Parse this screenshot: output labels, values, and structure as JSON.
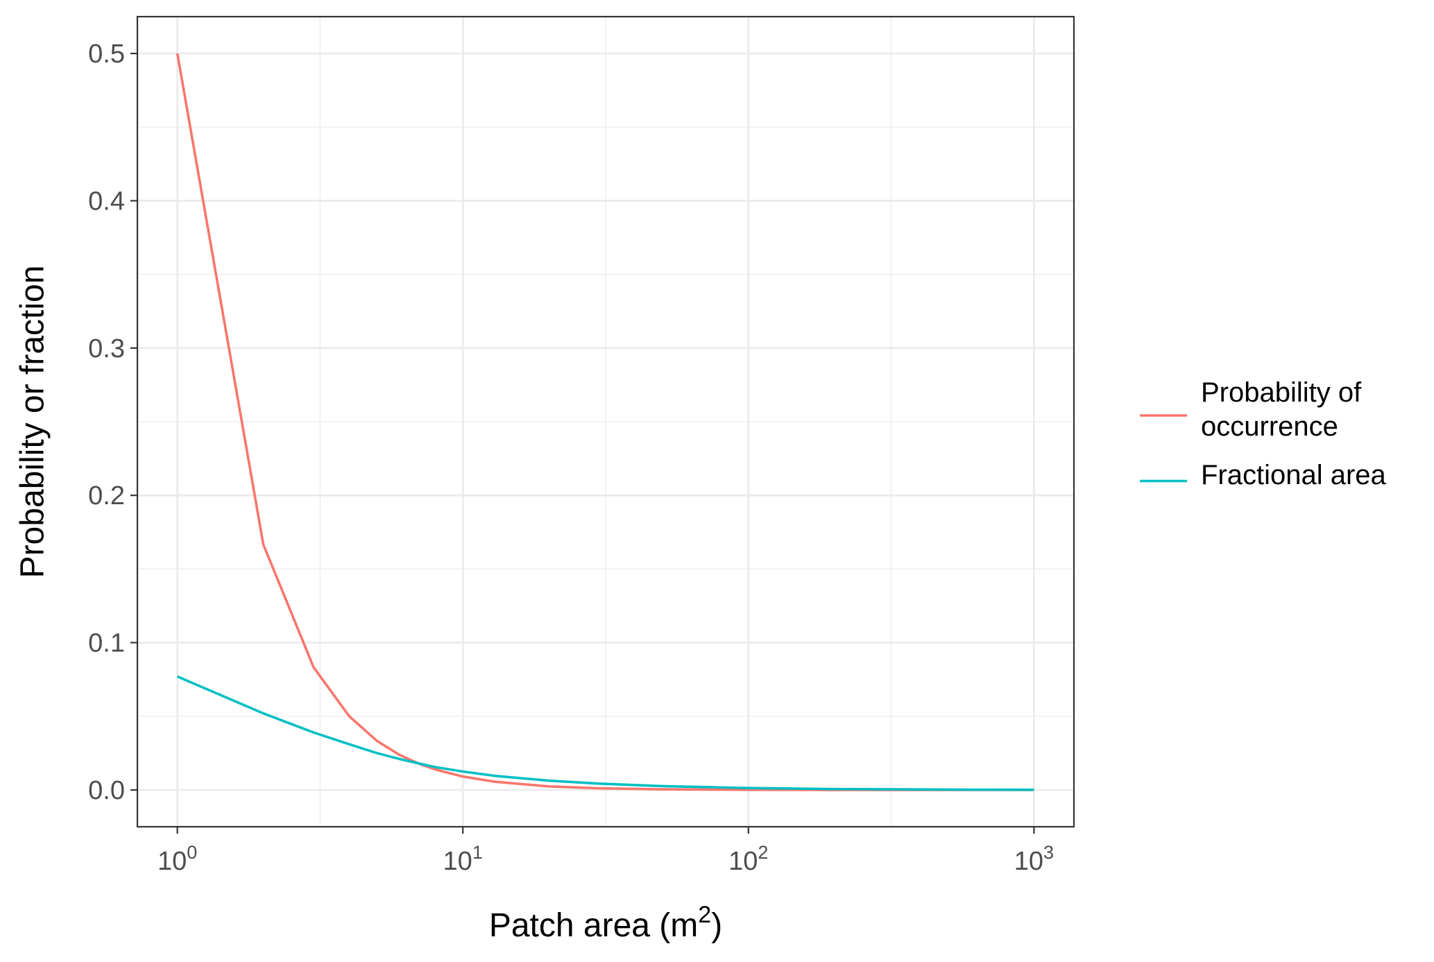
{
  "chart_data": {
    "type": "line",
    "title": "",
    "xlabel_main": "Patch area (m",
    "xlabel_sup": "2",
    "xlabel_close": ")",
    "ylabel": "Probability or fraction",
    "x_scale": "log10",
    "xlim": [
      1,
      1000
    ],
    "ylim": [
      0,
      0.5
    ],
    "x_ticks": [
      {
        "value": 1,
        "base": "10",
        "exp": "0"
      },
      {
        "value": 10,
        "base": "10",
        "exp": "1"
      },
      {
        "value": 100,
        "base": "10",
        "exp": "2"
      },
      {
        "value": 1000,
        "base": "10",
        "exp": "3"
      }
    ],
    "y_ticks": [
      {
        "value": 0.0,
        "label": "0.0"
      },
      {
        "value": 0.1,
        "label": "0.1"
      },
      {
        "value": 0.2,
        "label": "0.2"
      },
      {
        "value": 0.3,
        "label": "0.3"
      },
      {
        "value": 0.4,
        "label": "0.4"
      },
      {
        "value": 0.5,
        "label": "0.5"
      }
    ],
    "grid": true,
    "legend_position": "right",
    "series": [
      {
        "name_lines": [
          "Probability of",
          "occurrence"
        ],
        "color": "#F8766D",
        "x": [
          1,
          2,
          3,
          4,
          5,
          6,
          7,
          8,
          10,
          13,
          20,
          30,
          50,
          100,
          200,
          500,
          1000
        ],
        "y": [
          0.5,
          0.1667,
          0.0833,
          0.05,
          0.0333,
          0.0238,
          0.0179,
          0.0139,
          0.0091,
          0.0055,
          0.0024,
          0.0011,
          0.0004,
          0.0001,
          0.0,
          0.0,
          0.0
        ]
      },
      {
        "name_lines": [
          "Fractional area"
        ],
        "color": "#00BFC4",
        "x": [
          1,
          2,
          3,
          4,
          5,
          6,
          7,
          8,
          10,
          13,
          20,
          30,
          50,
          100,
          200,
          500,
          1000
        ],
        "y": [
          0.077,
          0.052,
          0.039,
          0.031,
          0.025,
          0.021,
          0.018,
          0.0155,
          0.0125,
          0.0095,
          0.0063,
          0.0043,
          0.0026,
          0.0013,
          0.0006,
          0.0002,
          0.0001
        ]
      }
    ]
  }
}
